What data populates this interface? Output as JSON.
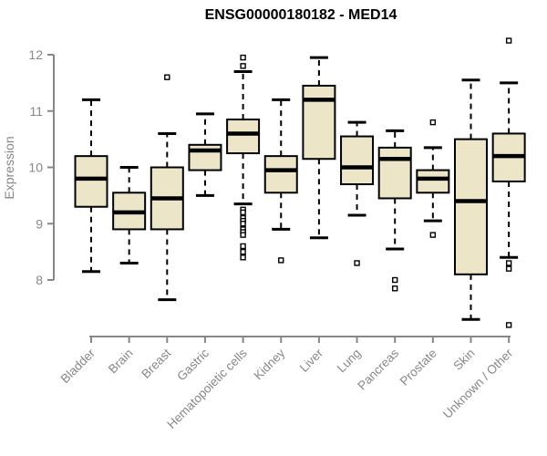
{
  "page": {
    "title": "ENSG00000180182 - MED14"
  },
  "chart_data": {
    "type": "box",
    "title": "ENSG00000180182 - MED14",
    "xlabel": "",
    "ylabel": "Expression",
    "ylim": [
      8,
      12
    ],
    "yticks": [
      8,
      9,
      10,
      11,
      12
    ],
    "grid": false,
    "legend": null,
    "categories": [
      "Bladder",
      "Brain",
      "Breast",
      "Gastric",
      "Hematopoietic cells",
      "Kidney",
      "Liver",
      "Lung",
      "Pancreas",
      "Prostate",
      "Skin",
      "Unknown / Other"
    ],
    "series": [
      {
        "name": "Bladder",
        "whisker_low": 8.15,
        "q1": 9.3,
        "median": 9.8,
        "q3": 10.2,
        "whisker_high": 11.2,
        "outliers": []
      },
      {
        "name": "Brain",
        "whisker_low": 8.3,
        "q1": 8.9,
        "median": 9.2,
        "q3": 9.55,
        "whisker_high": 10.0,
        "outliers": []
      },
      {
        "name": "Breast",
        "whisker_low": 7.65,
        "q1": 8.9,
        "median": 9.45,
        "q3": 10.0,
        "whisker_high": 10.6,
        "outliers": [
          11.6
        ]
      },
      {
        "name": "Gastric",
        "whisker_low": 9.5,
        "q1": 9.95,
        "median": 10.3,
        "q3": 10.4,
        "whisker_high": 10.95,
        "outliers": []
      },
      {
        "name": "Hematopoietic cells",
        "whisker_low": 9.35,
        "q1": 10.25,
        "median": 10.6,
        "q3": 10.85,
        "whisker_high": 11.7,
        "outliers": [
          11.95,
          11.8,
          9.25,
          9.2,
          9.1,
          9.05,
          9.0,
          8.9,
          8.85,
          8.8,
          8.6,
          8.5,
          8.4
        ]
      },
      {
        "name": "Kidney",
        "whisker_low": 8.9,
        "q1": 9.55,
        "median": 9.95,
        "q3": 10.2,
        "whisker_high": 11.2,
        "outliers": [
          8.35
        ]
      },
      {
        "name": "Liver",
        "whisker_low": 8.75,
        "q1": 10.15,
        "median": 11.2,
        "q3": 11.45,
        "whisker_high": 11.95,
        "outliers": []
      },
      {
        "name": "Lung",
        "whisker_low": 9.15,
        "q1": 9.7,
        "median": 10.0,
        "q3": 10.55,
        "whisker_high": 10.8,
        "outliers": [
          8.3
        ]
      },
      {
        "name": "Pancreas",
        "whisker_low": 8.55,
        "q1": 9.45,
        "median": 10.15,
        "q3": 10.35,
        "whisker_high": 10.65,
        "outliers": [
          8.0,
          7.85
        ]
      },
      {
        "name": "Prostate",
        "whisker_low": 9.05,
        "q1": 9.55,
        "median": 9.8,
        "q3": 9.95,
        "whisker_high": 10.35,
        "outliers": [
          10.8,
          8.8
        ]
      },
      {
        "name": "Skin",
        "whisker_low": 7.3,
        "q1": 8.1,
        "median": 9.4,
        "q3": 10.5,
        "whisker_high": 11.55,
        "outliers": []
      },
      {
        "name": "Unknown / Other",
        "whisker_low": 8.4,
        "q1": 9.75,
        "median": 10.2,
        "q3": 10.6,
        "whisker_high": 11.5,
        "outliers": [
          12.25,
          8.3,
          8.2,
          7.2
        ]
      }
    ],
    "colors": {
      "box_fill": "#ECE5C8",
      "box_border": "#000000",
      "median": "#000000",
      "whisker": "#000000",
      "outlier": "#000000",
      "axis": "#878787",
      "tick_text": "#878787",
      "title_text": "#000000",
      "background": "#FFFFFF"
    }
  }
}
